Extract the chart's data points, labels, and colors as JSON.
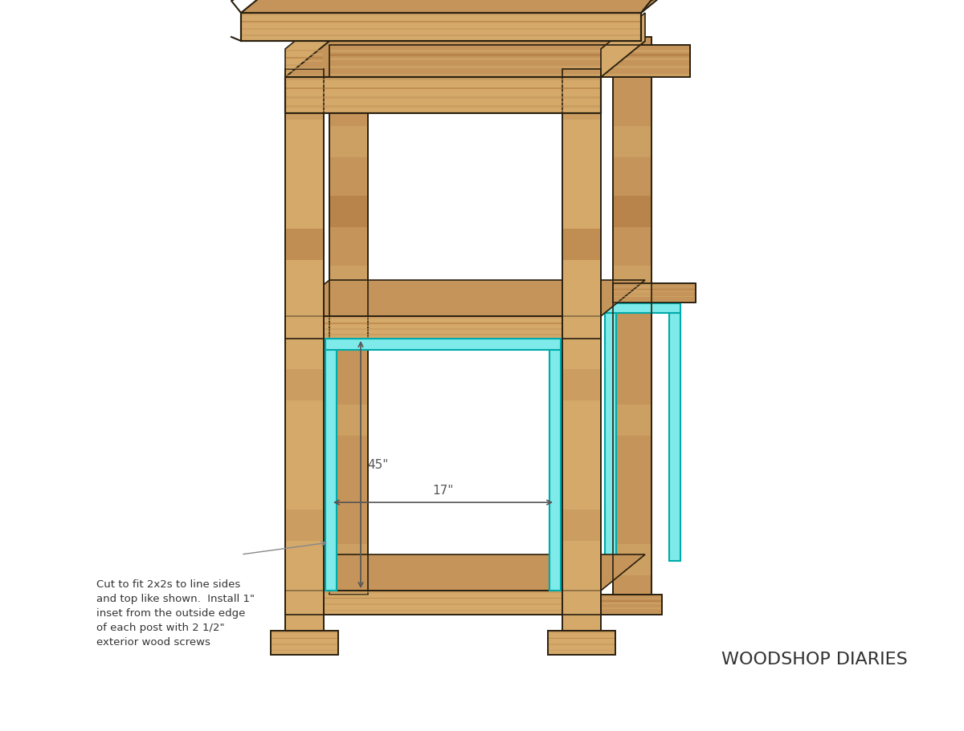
{
  "bg_color": "#ffffff",
  "wood_light": "#D4A96A",
  "wood_mid": "#C4945A",
  "wood_dark": "#B07840",
  "wood_outline": "#2a2010",
  "cyan_color": "#7EEAEA",
  "cyan_outline": "#00AAAA",
  "dim_line_color": "#555555",
  "annotation_color": "#888888",
  "text_color": "#333333",
  "brand_color": "#333333",
  "title": "WOODSHOP DIARIES",
  "dim_17": "17\"",
  "dim_45": "45\"",
  "annotation_text": "Cut to fit 2x2s to line sides\nand top like shown.  Install 1\"\ninset from the outside edge\nof each post with 2 1/2\"\nexterior wood screws",
  "figsize": [
    12,
    9.12
  ],
  "dpi": 100
}
